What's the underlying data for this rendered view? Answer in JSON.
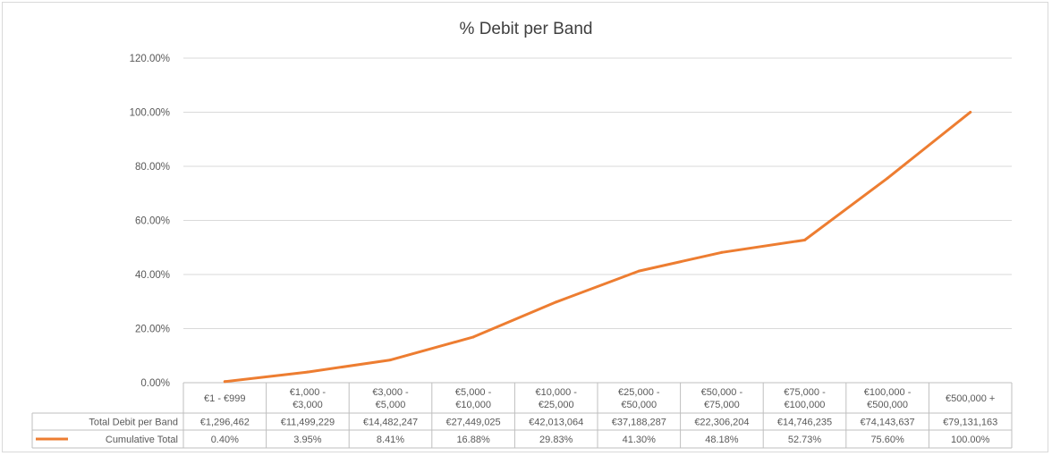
{
  "chart_data": {
    "type": "line",
    "title": "% Debit per Band",
    "categories": [
      [
        "€1 - €999"
      ],
      [
        "€1,000 -",
        "€3,000"
      ],
      [
        "€3,000 -",
        "€5,000"
      ],
      [
        "€5,000 -",
        "€10,000"
      ],
      [
        "€10,000 -",
        "€25,000"
      ],
      [
        "€25,000 -",
        "€50,000"
      ],
      [
        "€50,000 -",
        "€75,000"
      ],
      [
        "€75,000 -",
        "€100,000"
      ],
      [
        "€100,000 -",
        "€500,000"
      ],
      [
        "€500,000  +"
      ]
    ],
    "ylim": [
      0,
      120
    ],
    "yticks": [
      "0.00%",
      "20.00%",
      "40.00%",
      "60.00%",
      "80.00%",
      "100.00%",
      "120.00%"
    ],
    "grid": true,
    "series": [
      {
        "name": "Cumulative Total",
        "color": "#ED7D31",
        "values": [
          0.4,
          3.95,
          8.41,
          16.88,
          29.83,
          41.3,
          48.18,
          52.73,
          75.6,
          100.0
        ]
      }
    ],
    "data_table": {
      "rows": [
        {
          "label": "Total Debit per Band",
          "cells": [
            "€1,296,462",
            "€11,499,229",
            "€14,482,247",
            "€27,449,025",
            "€42,013,064",
            "€37,188,287",
            "€22,306,204",
            "€14,746,235",
            "€74,143,637",
            "€79,131,163"
          ]
        },
        {
          "label": "Cumulative Total",
          "cells": [
            "0.40%",
            "3.95%",
            "8.41%",
            "16.88%",
            "29.83%",
            "41.30%",
            "48.18%",
            "52.73%",
            "75.60%",
            "100.00%"
          ]
        }
      ]
    }
  }
}
